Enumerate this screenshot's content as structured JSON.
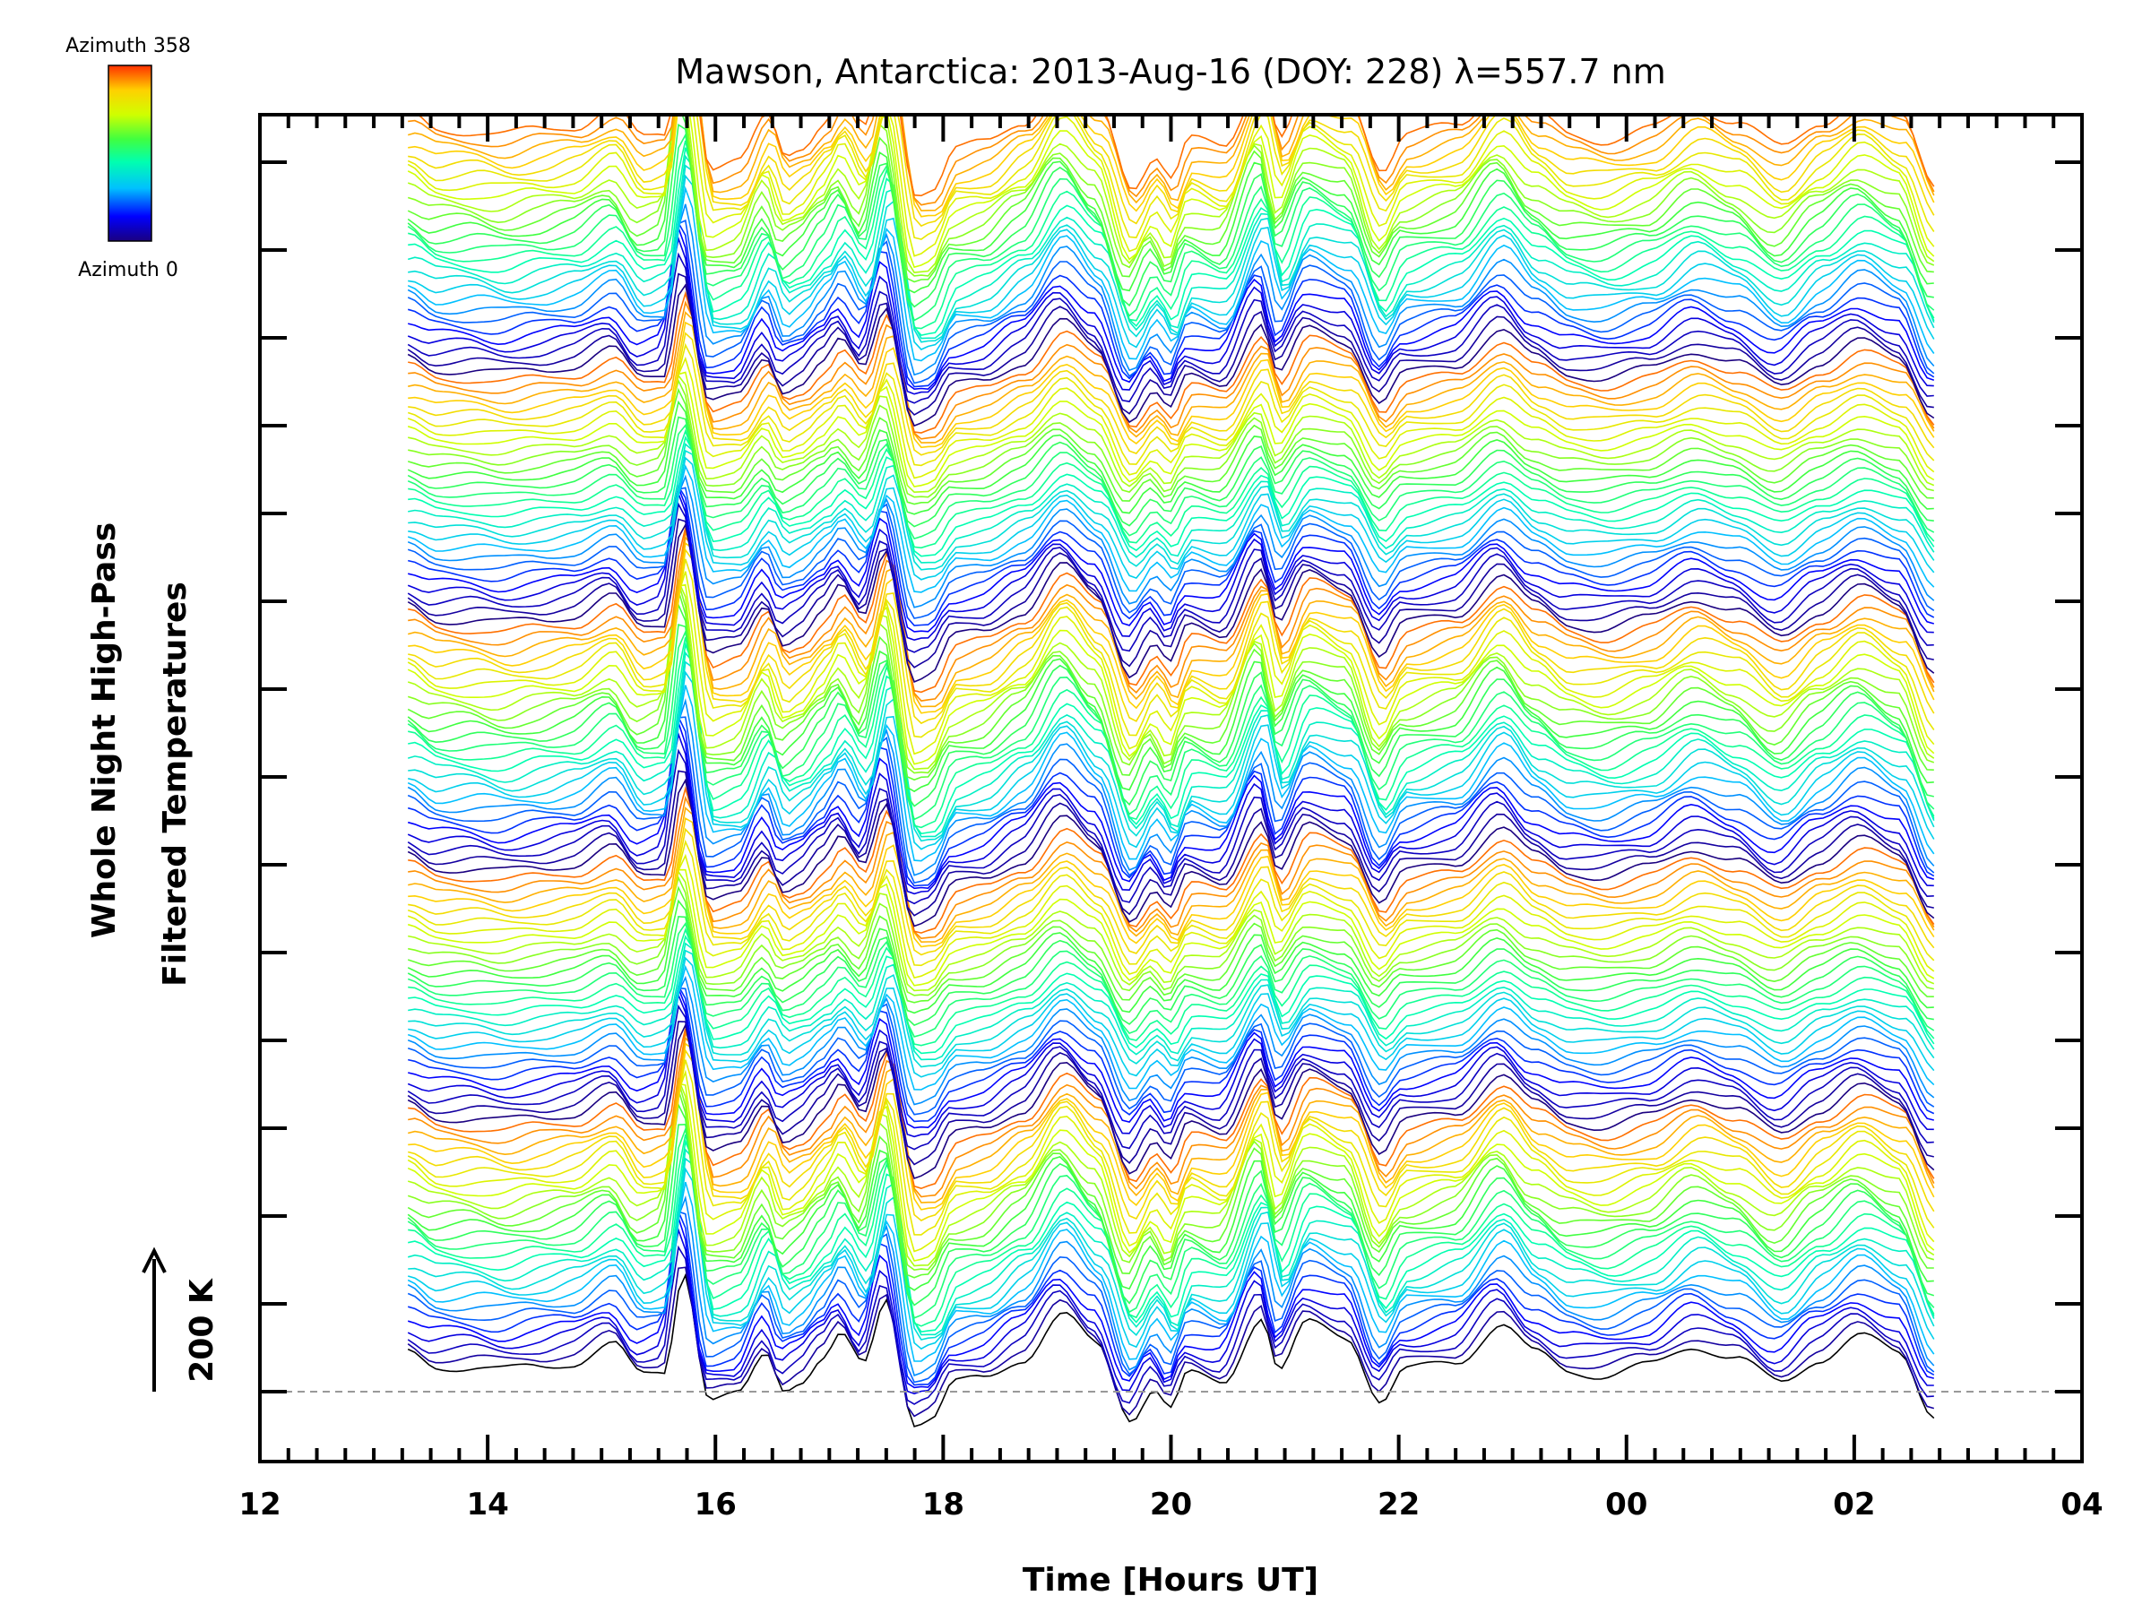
{
  "chart_data": {
    "type": "line",
    "title": "Mawson, Antarctica: 2013-Aug-16 (DOY: 228) λ=557.7 nm",
    "xlabel": "Time [Hours UT]",
    "ylabel_line1": "Whole Night High-Pass",
    "ylabel_line2": "Filtered Temperatures",
    "scale_label": "200 K",
    "colorbar": {
      "top_label": "Azimuth 358",
      "bottom_label": "Azimuth 0"
    },
    "x_ticks": [
      "12",
      "14",
      "16",
      "18",
      "20",
      "22",
      "00",
      "02",
      "04"
    ],
    "xlim_hours": [
      12,
      28
    ],
    "data_start_hour": 13.3,
    "data_end_hour": 26.7,
    "n_traces": 140,
    "azimuth_range": [
      0,
      358
    ],
    "colormap": [
      "#1a0080",
      "#0000ff",
      "#00c0ff",
      "#00ffb0",
      "#40ff40",
      "#d0ff00",
      "#ffd000",
      "#ff5000"
    ],
    "baseline_color": "#000000",
    "grid": false,
    "description_note": ""
  }
}
